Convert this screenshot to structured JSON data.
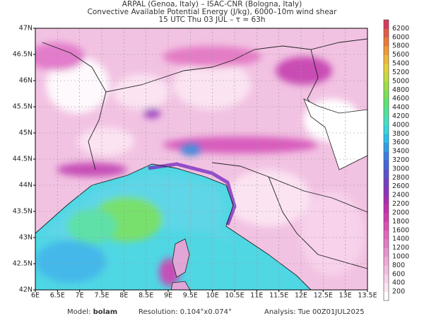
{
  "header": {
    "lines": [
      "ARPAL (Genoa, Italy)  –  ISAC-CNR (Bologna, Italy)",
      "Convective Available Potential Energy (J/kg), 6000–10m wind shear",
      "15 UTC Thu 03 JUL  –  τ = 63h"
    ]
  },
  "map": {
    "lon_labels": [
      "6E",
      "6.5E",
      "7E",
      "7.5E",
      "8E",
      "8.5E",
      "9E",
      "9.5E",
      "10E",
      "10.5E",
      "11E",
      "11.5E",
      "12E",
      "12.5E",
      "13E",
      "13.5E"
    ],
    "lat_labels": [
      "47N",
      "46.5N",
      "46N",
      "45.5N",
      "45N",
      "44.5N",
      "44N",
      "43.5N",
      "43N",
      "42.5N",
      "42N"
    ]
  },
  "colorbar": {
    "labels": [
      200,
      400,
      600,
      800,
      1000,
      1200,
      1400,
      1600,
      1800,
      2000,
      2200,
      2400,
      2600,
      2800,
      3000,
      3200,
      3400,
      3600,
      3800,
      4000,
      4200,
      4400,
      4600,
      4800,
      5000,
      5200,
      5400,
      5600,
      5800,
      6000,
      6200
    ],
    "colors": [
      "#ffffff",
      "#fbe6f3",
      "#f7d2ea",
      "#f3bfe2",
      "#efa9d8",
      "#ea93cf",
      "#e57cc6",
      "#e066be",
      "#db4fb6",
      "#d23bb0",
      "#c22fb0",
      "#a82db4",
      "#8e33bb",
      "#7440c4",
      "#5a52cf",
      "#4466d9",
      "#3a7ee0",
      "#30a0e6",
      "#2bc0ea",
      "#35d8e0",
      "#45e0c0",
      "#50e49a",
      "#5ee472",
      "#7ae258",
      "#9ee048",
      "#c4dc40",
      "#e4d23a",
      "#f0b838",
      "#f09a36",
      "#ec7a38",
      "#e45a44",
      "#d83a5a"
    ]
  },
  "footer": {
    "model_label": "Model:",
    "model": "bolam",
    "resolution": "Resolution: 0.104°x0.074°",
    "analysis": "Analysis: Tue 00Z01JUL2025"
  }
}
